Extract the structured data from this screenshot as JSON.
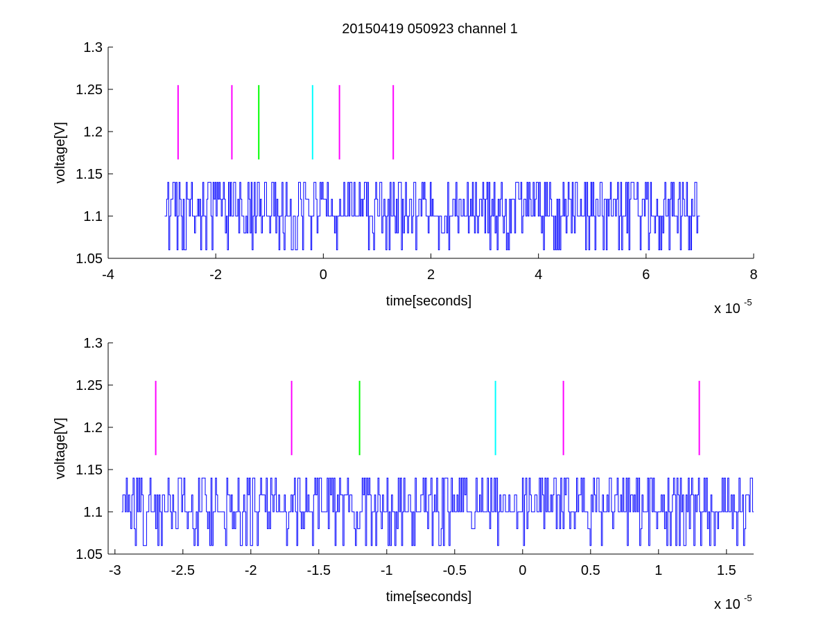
{
  "figure_title": "20150419 050923 channel 1",
  "chart_data": [
    {
      "type": "line",
      "title": "20150419 050923 channel 1",
      "xlabel": "time[seconds]",
      "ylabel": "voltage[V]",
      "x_exponent_label": "x 10",
      "x_exponent_power": "-5",
      "xlim": [
        -4,
        8
      ],
      "ylim": [
        1.05,
        1.3
      ],
      "xticks": [
        -4,
        -2,
        0,
        2,
        4,
        6,
        8
      ],
      "xtick_labels": [
        "-4",
        "-2",
        "0",
        "2",
        "4",
        "6",
        "8"
      ],
      "yticks": [
        1.05,
        1.1,
        1.15,
        1.2,
        1.25,
        1.3
      ],
      "ytick_labels": [
        "1.05",
        "1.1",
        "1.15",
        "1.2",
        "1.25",
        "1.3"
      ],
      "grid": false,
      "signal": {
        "color": "#0000ff",
        "x_range": [
          -2.95,
          7.0
        ],
        "baseline": 1.1,
        "levels": [
          1.06,
          1.08,
          1.1,
          1.12,
          1.14
        ]
      },
      "markers": [
        {
          "x": -2.7,
          "y0": 1.167,
          "y1": 1.255,
          "color": "#ff00ff"
        },
        {
          "x": -1.7,
          "y0": 1.167,
          "y1": 1.255,
          "color": "#ff00ff"
        },
        {
          "x": -1.2,
          "y0": 1.167,
          "y1": 1.255,
          "color": "#00ff00"
        },
        {
          "x": -0.2,
          "y0": 1.167,
          "y1": 1.255,
          "color": "#00ffff"
        },
        {
          "x": 0.3,
          "y0": 1.167,
          "y1": 1.255,
          "color": "#ff00ff"
        },
        {
          "x": 1.3,
          "y0": 1.167,
          "y1": 1.255,
          "color": "#ff00ff"
        }
      ]
    },
    {
      "type": "line",
      "title": "",
      "xlabel": "time[seconds]",
      "ylabel": "voltage[V]",
      "x_exponent_label": "x 10",
      "x_exponent_power": "-5",
      "xlim": [
        -3.05,
        1.7
      ],
      "ylim": [
        1.05,
        1.3
      ],
      "xticks": [
        -3,
        -2.5,
        -2,
        -1.5,
        -1,
        -0.5,
        0,
        0.5,
        1,
        1.5
      ],
      "xtick_labels": [
        "-3",
        "-2.5",
        "-2",
        "-1.5",
        "-1",
        "-0.5",
        "0",
        "0.5",
        "1",
        "1.5"
      ],
      "yticks": [
        1.05,
        1.1,
        1.15,
        1.2,
        1.25,
        1.3
      ],
      "ytick_labels": [
        "1.05",
        "1.1",
        "1.15",
        "1.2",
        "1.25",
        "1.3"
      ],
      "grid": false,
      "signal": {
        "color": "#0000ff",
        "x_range": [
          -2.95,
          1.7
        ],
        "baseline": 1.1,
        "levels": [
          1.06,
          1.08,
          1.1,
          1.12,
          1.14
        ]
      },
      "markers": [
        {
          "x": -2.7,
          "y0": 1.167,
          "y1": 1.255,
          "color": "#ff00ff"
        },
        {
          "x": -1.7,
          "y0": 1.167,
          "y1": 1.255,
          "color": "#ff00ff"
        },
        {
          "x": -1.2,
          "y0": 1.167,
          "y1": 1.255,
          "color": "#00ff00"
        },
        {
          "x": -0.2,
          "y0": 1.167,
          "y1": 1.255,
          "color": "#00ffff"
        },
        {
          "x": 0.3,
          "y0": 1.167,
          "y1": 1.255,
          "color": "#ff00ff"
        },
        {
          "x": 1.3,
          "y0": 1.167,
          "y1": 1.255,
          "color": "#ff00ff"
        }
      ]
    }
  ]
}
